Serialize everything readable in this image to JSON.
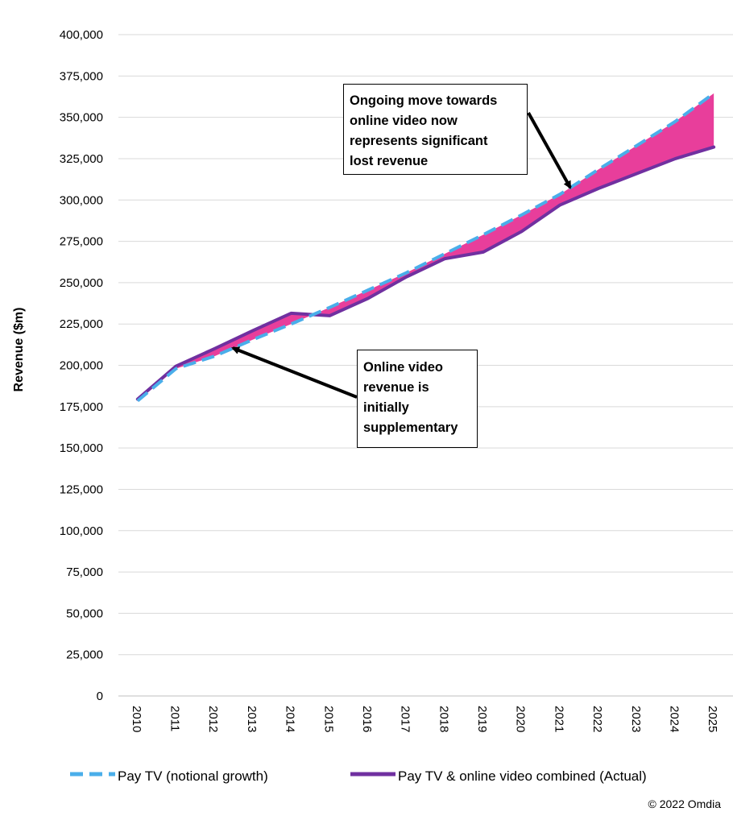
{
  "chart_data": {
    "type": "line",
    "title": "",
    "xlabel": "",
    "ylabel": "Revenue ($m)",
    "categories": [
      "2010",
      "2011",
      "2012",
      "2013",
      "2014",
      "2015",
      "2016",
      "2017",
      "2018",
      "2019",
      "2020",
      "2021",
      "2022",
      "2023",
      "2024",
      "2025"
    ],
    "ylim": [
      0,
      400000
    ],
    "yticks": [
      0,
      25000,
      50000,
      75000,
      100000,
      125000,
      150000,
      175000,
      200000,
      225000,
      250000,
      275000,
      300000,
      325000,
      350000,
      375000,
      400000
    ],
    "ytick_labels": [
      "0",
      "25,000",
      "50,000",
      "75,000",
      "100,000",
      "125,000",
      "150,000",
      "175,000",
      "200,000",
      "225,000",
      "250,000",
      "275,000",
      "300,000",
      "325,000",
      "350,000",
      "375,000",
      "400,000"
    ],
    "grid": "horizontal",
    "legend_position": "bottom",
    "series": [
      {
        "name": "Pay TV (notional growth)",
        "style": "dashed",
        "color": "#4AAEEA",
        "values": [
          178500,
          198000,
          205500,
          215500,
          225000,
          235000,
          245500,
          256000,
          267500,
          279000,
          291000,
          303500,
          318500,
          333000,
          347500,
          364500
        ]
      },
      {
        "name": "Pay TV & online video combined (Actual)",
        "style": "solid",
        "color": "#7030A0",
        "values": [
          179500,
          199500,
          210000,
          221000,
          231500,
          230000,
          240500,
          253500,
          264500,
          268500,
          281000,
          297000,
          307000,
          316000,
          325000,
          332000
        ]
      }
    ],
    "fill_between": {
      "color": "#E83E9B",
      "meaning": "lost revenue gap"
    },
    "annotations": [
      {
        "id": "ongoing",
        "text_lines": [
          "Ongoing move towards",
          "online video now",
          "represents significant",
          "lost revenue"
        ]
      },
      {
        "id": "initial",
        "text_lines": [
          "Online video",
          "revenue is",
          "initially",
          "supplementary"
        ]
      }
    ]
  },
  "legend": {
    "notional_label": "Pay TV (notional growth)",
    "actual_label": "Pay TV & online video combined (Actual)"
  },
  "copyright": "© 2022 Omdia",
  "colors": {
    "notional": "#4AAEEA",
    "actual": "#7030A0",
    "gap_fill": "#E83E9B",
    "grid": "#D9D9D9"
  }
}
